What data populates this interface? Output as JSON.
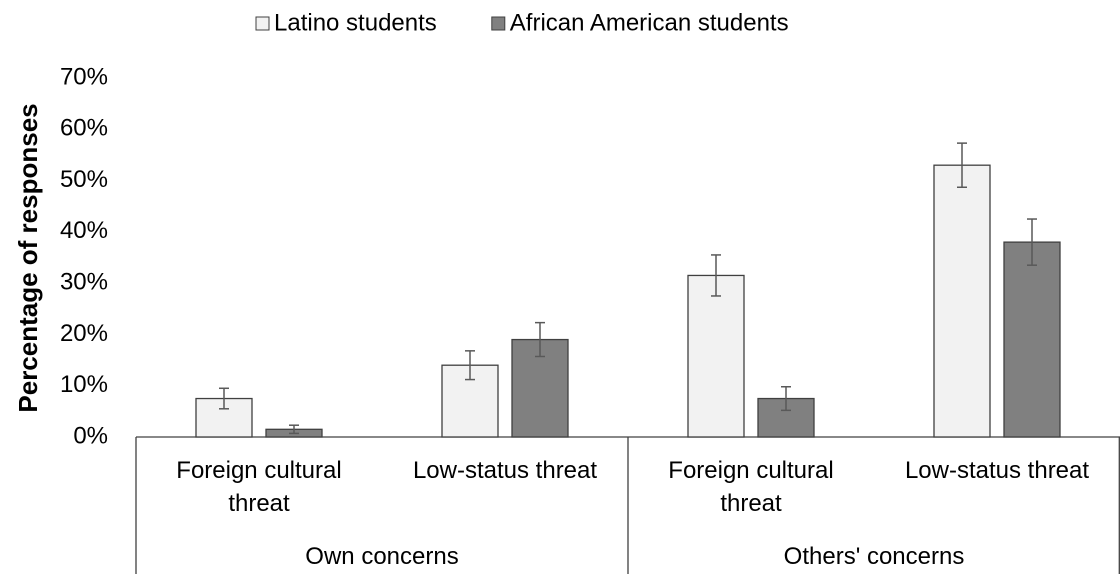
{
  "chart_data": {
    "type": "bar",
    "y_label": "Percentage of responses",
    "categories": [
      "Foreign cultural threat",
      "Low-status threat",
      "Foreign cultural threat",
      "Low-status threat"
    ],
    "groups": [
      "Own concerns",
      "Others' concerns"
    ],
    "series": [
      {
        "name": "Latino students",
        "color": "#f2f2f2",
        "values": [
          7.5,
          14,
          31.5,
          53
        ],
        "errors": [
          2,
          2.8,
          4,
          4.3
        ]
      },
      {
        "name": "African American students",
        "color": "#808080",
        "values": [
          1.5,
          19,
          7.5,
          38
        ],
        "errors": [
          0.8,
          3.3,
          2.3,
          4.5
        ]
      }
    ],
    "ylim": [
      0,
      70
    ],
    "yticks": [
      {
        "value": 0,
        "label": "0%"
      },
      {
        "value": 10,
        "label": "10%"
      },
      {
        "value": 20,
        "label": "20%"
      },
      {
        "value": 30,
        "label": "30%"
      },
      {
        "value": 40,
        "label": "40%"
      },
      {
        "value": 50,
        "label": "50%"
      },
      {
        "value": 60,
        "label": "60%"
      },
      {
        "value": 70,
        "label": "70%"
      }
    ],
    "legend": "top"
  }
}
